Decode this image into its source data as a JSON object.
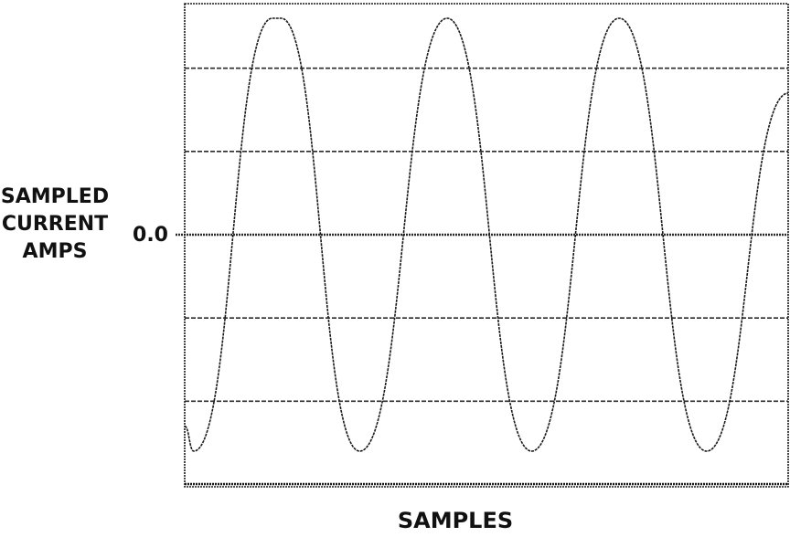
{
  "chart_data": {
    "type": "line",
    "title": "",
    "xlabel": "SAMPLES",
    "ylabel": [
      "SAMPLED",
      "CURRENT",
      "AMPS"
    ],
    "y_tick_labels": [
      {
        "value": 0.0,
        "text": "0.0"
      }
    ],
    "ylim": [
      -2.6,
      2.6
    ],
    "xlim": [
      0,
      100
    ],
    "grid": true,
    "grid_y_values": [
      -2,
      -1,
      0,
      1,
      2
    ],
    "legend": "none",
    "series": [
      {
        "x": [
          0,
          1.5,
          14.5,
          16,
          29,
          43.5,
          57.5,
          72,
          86.5,
          100
        ],
        "y": [
          -2.3,
          -2.6,
          2.6,
          2.6,
          -2.6,
          2.6,
          -2.6,
          2.6,
          -2.6,
          1.7
        ]
      }
    ],
    "colors": {
      "line": "#1a1a1a",
      "grid": "#2a2a2a",
      "frame": "#1a1a1a"
    }
  }
}
